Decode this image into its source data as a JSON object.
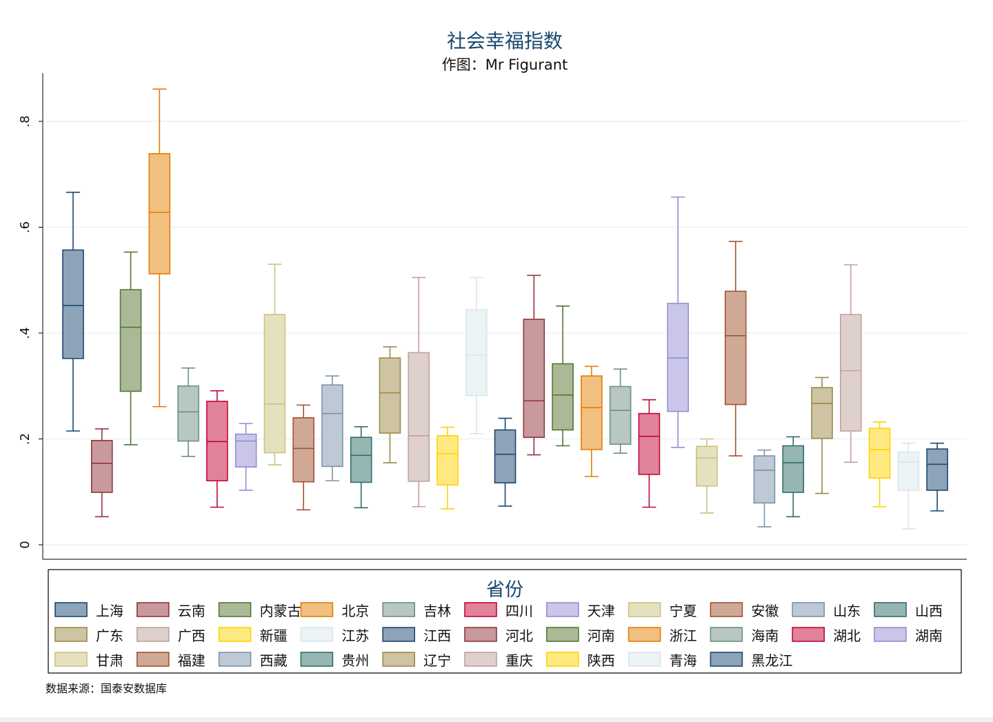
{
  "chart_data": {
    "type": "box",
    "title": "社会幸福指数",
    "subtitle": "作图：Mr Figurant",
    "note": "数据来源：国泰安数据库",
    "legend_title": "省份",
    "legend_position": "bottom",
    "ylabel": "",
    "ylim": [
      -0.03,
      0.89
    ],
    "yticks": [
      0,
      0.2,
      0.4,
      0.6,
      0.8
    ],
    "ytick_labels": [
      "0",
      ".2",
      ".4",
      ".6",
      ".8"
    ],
    "grid": true,
    "series": [
      {
        "name": "上海",
        "color": "#1a476f",
        "whislo": 0.215,
        "q1": 0.352,
        "med": 0.452,
        "q3": 0.557,
        "whishi": 0.666
      },
      {
        "name": "云南",
        "color": "#90353b",
        "whislo": 0.053,
        "q1": 0.099,
        "med": 0.154,
        "q3": 0.197,
        "whishi": 0.219
      },
      {
        "name": "内蒙古",
        "color": "#55752f",
        "whislo": 0.189,
        "q1": 0.29,
        "med": 0.411,
        "q3": 0.482,
        "whishi": 0.553
      },
      {
        "name": "北京",
        "color": "#e37e00",
        "whislo": 0.261,
        "q1": 0.512,
        "med": 0.628,
        "q3": 0.739,
        "whishi": 0.861
      },
      {
        "name": "吉林",
        "color": "#6e8e84",
        "whislo": 0.167,
        "q1": 0.196,
        "med": 0.251,
        "q3": 0.3,
        "whishi": 0.334
      },
      {
        "name": "四川",
        "color": "#c10534",
        "whislo": 0.071,
        "q1": 0.121,
        "med": 0.195,
        "q3": 0.271,
        "whishi": 0.291
      },
      {
        "name": "天津",
        "color": "#938dd2",
        "whislo": 0.103,
        "q1": 0.147,
        "med": 0.196,
        "q3": 0.209,
        "whishi": 0.229
      },
      {
        "name": "宁夏",
        "color": "#cac27e",
        "whislo": 0.151,
        "q1": 0.174,
        "med": 0.266,
        "q3": 0.435,
        "whishi": 0.53
      },
      {
        "name": "安徽",
        "color": "#a0522d",
        "whislo": 0.066,
        "q1": 0.119,
        "med": 0.182,
        "q3": 0.24,
        "whishi": 0.264
      },
      {
        "name": "山东",
        "color": "#7b92a8",
        "whislo": 0.121,
        "q1": 0.148,
        "med": 0.248,
        "q3": 0.302,
        "whishi": 0.319
      },
      {
        "name": "山西",
        "color": "#2d6d66",
        "whislo": 0.07,
        "q1": 0.118,
        "med": 0.169,
        "q3": 0.203,
        "whishi": 0.223
      },
      {
        "name": "广东",
        "color": "#9c8847",
        "whislo": 0.155,
        "q1": 0.211,
        "med": 0.287,
        "q3": 0.353,
        "whishi": 0.374
      },
      {
        "name": "广西",
        "color": "#bfa19c",
        "whislo": 0.072,
        "q1": 0.12,
        "med": 0.206,
        "q3": 0.363,
        "whishi": 0.505
      },
      {
        "name": "新疆",
        "color": "#ffd200",
        "whislo": 0.068,
        "q1": 0.113,
        "med": 0.172,
        "q3": 0.206,
        "whishi": 0.222
      },
      {
        "name": "江苏",
        "color": "#d9e6eb",
        "whislo": 0.21,
        "q1": 0.282,
        "med": 0.358,
        "q3": 0.444,
        "whishi": 0.505
      },
      {
        "name": "江西",
        "color": "#1a476f",
        "whislo": 0.073,
        "q1": 0.117,
        "med": 0.171,
        "q3": 0.217,
        "whishi": 0.239
      },
      {
        "name": "河北",
        "color": "#90353b",
        "whislo": 0.17,
        "q1": 0.203,
        "med": 0.272,
        "q3": 0.426,
        "whishi": 0.509
      },
      {
        "name": "河南",
        "color": "#55752f",
        "whislo": 0.187,
        "q1": 0.217,
        "med": 0.283,
        "q3": 0.342,
        "whishi": 0.451
      },
      {
        "name": "浙江",
        "color": "#e37e00",
        "whislo": 0.129,
        "q1": 0.18,
        "med": 0.259,
        "q3": 0.319,
        "whishi": 0.337
      },
      {
        "name": "海南",
        "color": "#6e8e84",
        "whislo": 0.173,
        "q1": 0.19,
        "med": 0.254,
        "q3": 0.299,
        "whishi": 0.332
      },
      {
        "name": "湖北",
        "color": "#c10534",
        "whislo": 0.071,
        "q1": 0.133,
        "med": 0.205,
        "q3": 0.248,
        "whishi": 0.274
      },
      {
        "name": "湖南",
        "color": "#938dd2",
        "whislo": 0.184,
        "q1": 0.252,
        "med": 0.353,
        "q3": 0.456,
        "whishi": 0.657
      },
      {
        "name": "甘肃",
        "color": "#cac27e",
        "whislo": 0.06,
        "q1": 0.111,
        "med": 0.164,
        "q3": 0.186,
        "whishi": 0.2
      },
      {
        "name": "福建",
        "color": "#a0522d",
        "whislo": 0.168,
        "q1": 0.265,
        "med": 0.395,
        "q3": 0.479,
        "whishi": 0.573
      },
      {
        "name": "西藏",
        "color": "#7b92a8",
        "whislo": 0.034,
        "q1": 0.079,
        "med": 0.141,
        "q3": 0.168,
        "whishi": 0.179
      },
      {
        "name": "贵州",
        "color": "#2d6d66",
        "whislo": 0.053,
        "q1": 0.099,
        "med": 0.155,
        "q3": 0.187,
        "whishi": 0.204
      },
      {
        "name": "辽宁",
        "color": "#9c8847",
        "whislo": 0.097,
        "q1": 0.201,
        "med": 0.267,
        "q3": 0.297,
        "whishi": 0.316
      },
      {
        "name": "重庆",
        "color": "#bfa19c",
        "whislo": 0.156,
        "q1": 0.215,
        "med": 0.329,
        "q3": 0.435,
        "whishi": 0.529
      },
      {
        "name": "陕西",
        "color": "#ffd200",
        "whislo": 0.072,
        "q1": 0.126,
        "med": 0.18,
        "q3": 0.22,
        "whishi": 0.232
      },
      {
        "name": "青海",
        "color": "#d9e6eb",
        "whislo": 0.03,
        "q1": 0.103,
        "med": 0.156,
        "q3": 0.175,
        "whishi": 0.192
      },
      {
        "name": "黑龙江",
        "color": "#1a476f",
        "whislo": 0.064,
        "q1": 0.103,
        "med": 0.152,
        "q3": 0.181,
        "whishi": 0.192
      }
    ]
  }
}
